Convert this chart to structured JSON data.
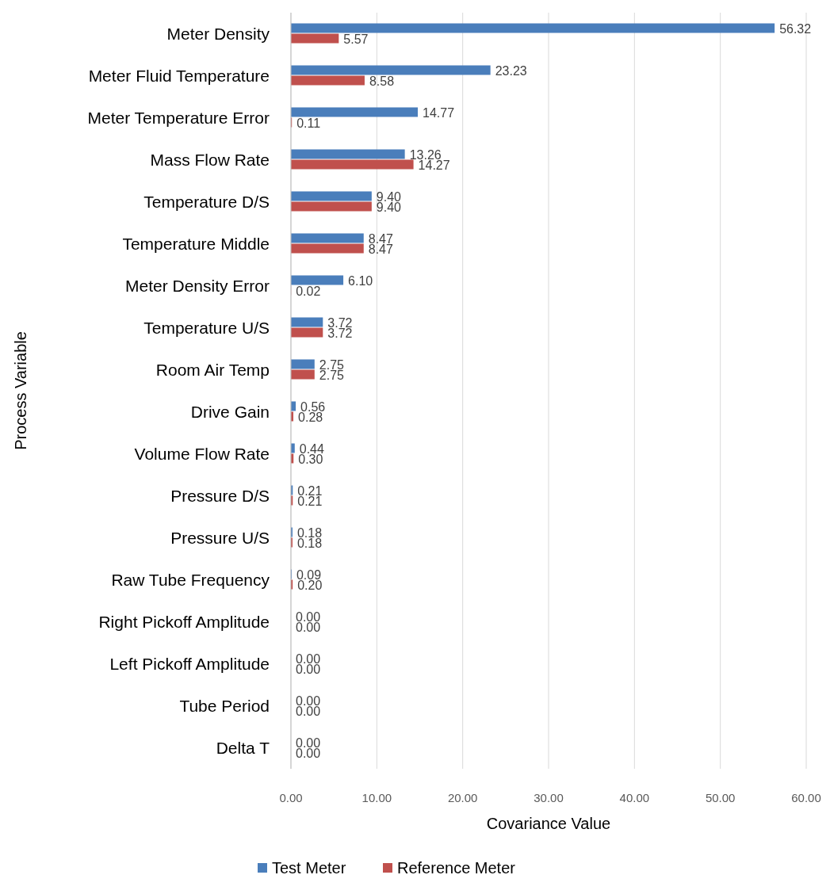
{
  "chart_data": {
    "type": "bar",
    "orientation": "horizontal",
    "xlabel": "Covariance Value",
    "ylabel": "Process Variable",
    "categories": [
      "Meter Density",
      "Meter Fluid Temperature",
      "Meter Temperature Error",
      "Mass Flow Rate",
      "Temperature D/S",
      "Temperature Middle",
      "Meter Density Error",
      "Temperature U/S",
      "Room Air Temp",
      "Drive Gain",
      "Volume Flow Rate",
      "Pressure D/S",
      "Pressure U/S",
      "Raw Tube Frequency",
      "Right Pickoff Amplitude",
      "Left Pickoff Amplitude",
      "Tube Period",
      "Delta T"
    ],
    "series": [
      {
        "name": "Test Meter",
        "color": "#4a7ebb",
        "values": [
          56.32,
          23.23,
          14.77,
          13.26,
          9.4,
          8.47,
          6.1,
          3.72,
          2.75,
          0.56,
          0.44,
          0.21,
          0.18,
          0.09,
          0,
          0,
          0,
          0
        ],
        "value_labels": [
          "56.32",
          "23.23",
          "14.77",
          "13.26",
          "9.40",
          "8.47",
          "6.10",
          "3.72",
          "2.75",
          "0.56",
          "0.44",
          "0.21",
          "0.18",
          "0.09",
          "0.00",
          "0.00",
          "0.00",
          "0.00"
        ]
      },
      {
        "name": "Reference Meter",
        "color": "#c0504d",
        "values": [
          5.57,
          8.58,
          0.11,
          14.27,
          9.4,
          8.47,
          0.02,
          3.72,
          2.75,
          0.28,
          0.3,
          0.21,
          0.18,
          0.2,
          0,
          0,
          0,
          0
        ],
        "value_labels": [
          "5.57",
          "8.58",
          "0.11",
          "14.27",
          "9.40",
          "8.47",
          "0.02",
          "3.72",
          "2.75",
          "0.28",
          "0.30",
          "0.21",
          "0.18",
          "0.20",
          "0.00",
          "0.00",
          "0.00",
          "0.00"
        ]
      }
    ],
    "xlim": [
      0,
      60
    ],
    "xticks": [
      {
        "value": 0,
        "label": "0.00"
      },
      {
        "value": 10,
        "label": "10.00"
      },
      {
        "value": 20,
        "label": "20.00"
      },
      {
        "value": 30,
        "label": "30.00"
      },
      {
        "value": 40,
        "label": "40.00"
      },
      {
        "value": 50,
        "label": "50.00"
      },
      {
        "value": 60,
        "label": "60.00"
      }
    ],
    "grid": "x",
    "legend": "bottom"
  }
}
